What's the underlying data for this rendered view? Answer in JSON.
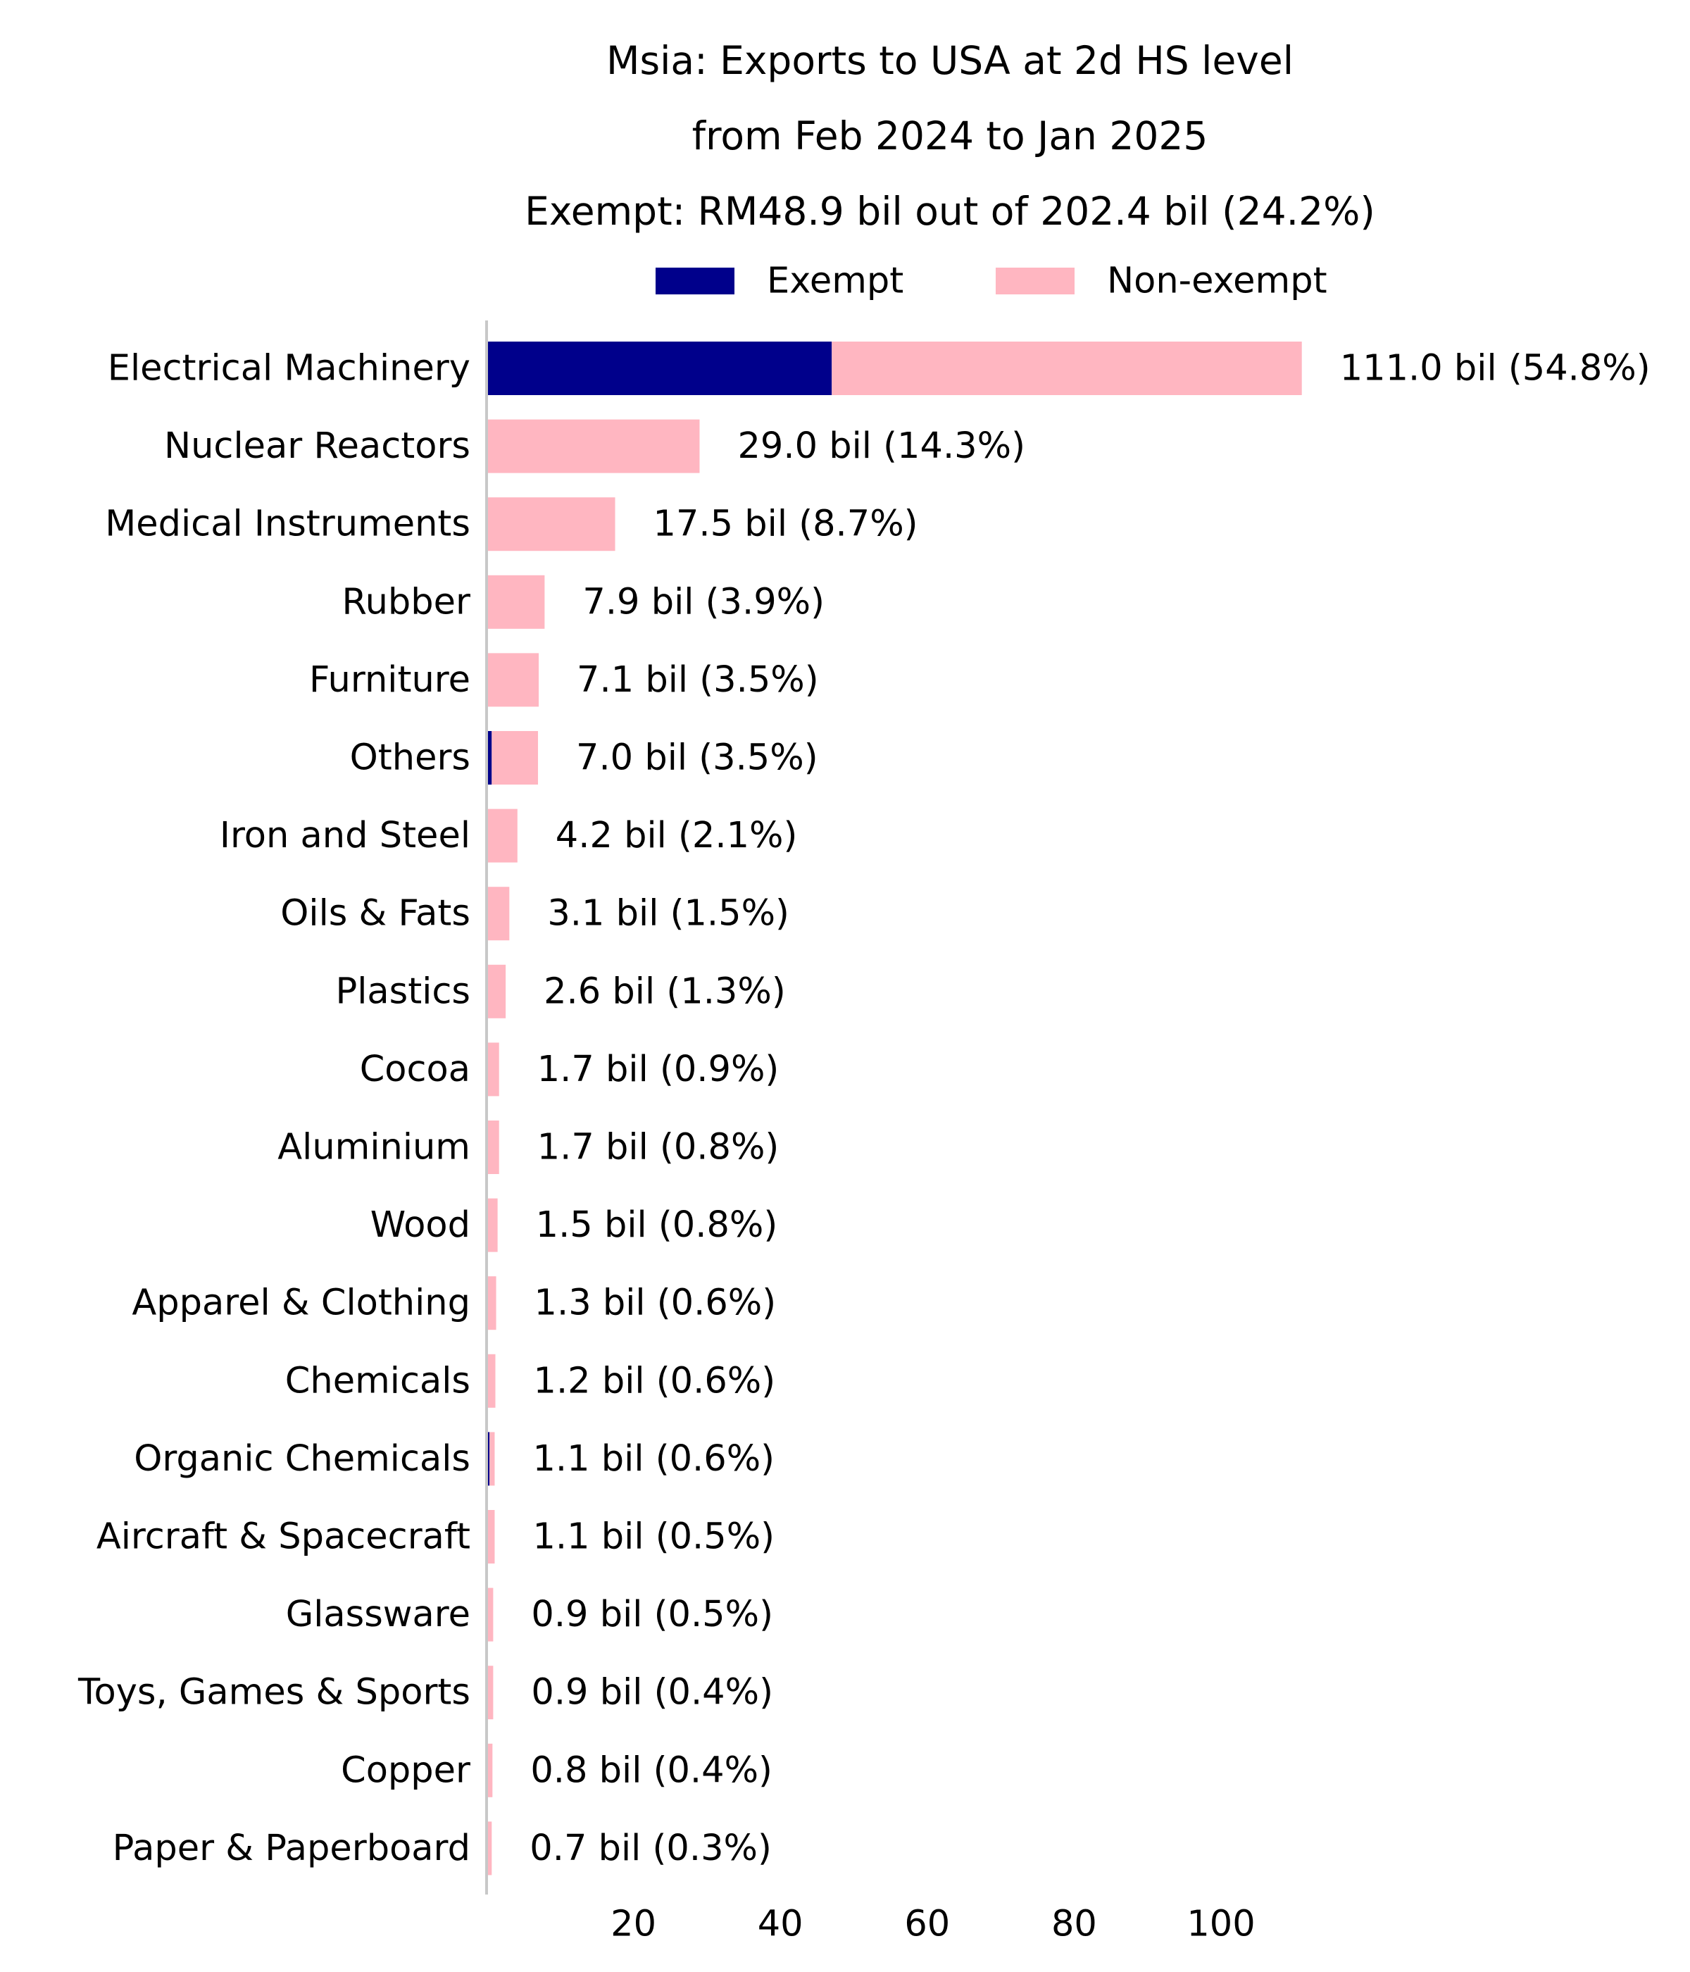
{
  "chart_data": {
    "type": "bar",
    "orientation": "horizontal",
    "stacked": true,
    "title": [
      "Msia: Exports to USA at 2d HS level",
      "from Feb 2024 to Jan 2025",
      "Exempt: RM48.9 bil out of 202.4 bil (24.2%)"
    ],
    "xlabel": "",
    "ylabel": "",
    "legend_position": "top-center",
    "grid": false,
    "xlim": [
      0,
      113
    ],
    "x_ticks": [
      20,
      40,
      60,
      80,
      100
    ],
    "series": [
      {
        "name": "Exempt",
        "color": "#00008b",
        "values": [
          47.0,
          0,
          0,
          0,
          0,
          0.7,
          0,
          0,
          0.2,
          0,
          0,
          0,
          0,
          0,
          0.4,
          0,
          0,
          0,
          0,
          0
        ]
      },
      {
        "name": "Non-exempt",
        "color": "#ffb6c1",
        "values": [
          64.0,
          29.0,
          17.5,
          7.9,
          7.1,
          6.3,
          4.2,
          3.1,
          2.4,
          1.7,
          1.7,
          1.5,
          1.3,
          1.2,
          0.7,
          1.1,
          0.9,
          0.9,
          0.8,
          0.7
        ]
      }
    ],
    "categories": [
      "Electrical Machinery",
      "Nuclear Reactors",
      "Medical Instruments",
      "Rubber",
      "Furniture",
      "Others",
      "Iron and Steel",
      "Oils & Fats",
      "Plastics",
      "Cocoa",
      "Aluminium",
      "Wood",
      "Apparel & Clothing",
      "Chemicals",
      "Organic Chemicals",
      "Aircraft & Spacecraft",
      "Glassware",
      "Toys, Games & Sports",
      "Copper",
      "Paper & Paperboard"
    ],
    "totals": [
      111.0,
      29.0,
      17.5,
      7.9,
      7.1,
      7.0,
      4.2,
      3.1,
      2.6,
      1.7,
      1.7,
      1.5,
      1.3,
      1.2,
      1.1,
      1.1,
      0.9,
      0.9,
      0.8,
      0.7
    ],
    "data_labels": [
      "111.0 bil (54.8%)",
      "29.0 bil (14.3%)",
      "17.5 bil (8.7%)",
      "7.9 bil (3.9%)",
      "7.1 bil (3.5%)",
      "7.0 bil (3.5%)",
      "4.2 bil (2.1%)",
      "3.1 bil (1.5%)",
      "2.6 bil (1.3%)",
      "1.7 bil (0.9%)",
      "1.7 bil (0.8%)",
      "1.5 bil (0.8%)",
      "1.3 bil (0.6%)",
      "1.2 bil (0.6%)",
      "1.1 bil (0.6%)",
      "1.1 bil (0.5%)",
      "0.9 bil (0.5%)",
      "0.9 bil (0.4%)",
      "0.8 bil (0.4%)",
      "0.7 bil (0.3%)"
    ]
  }
}
